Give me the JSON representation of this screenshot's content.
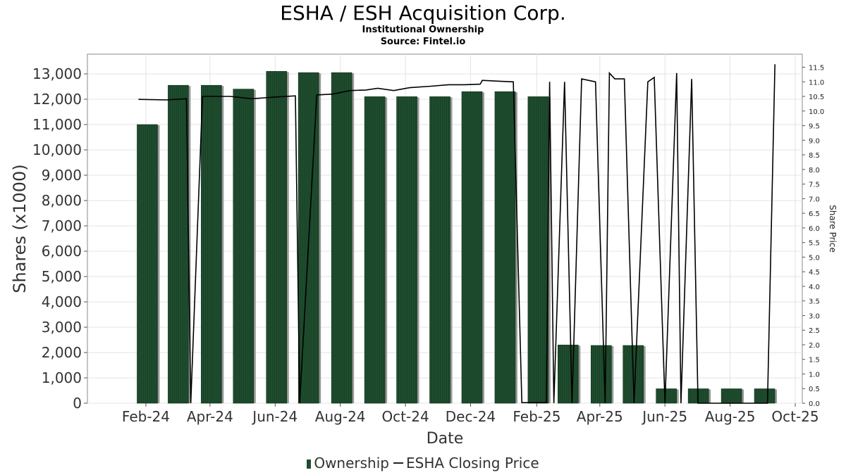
{
  "chart_data": {
    "type": "bar",
    "title": "ESHA / ESH Acquisition Corp.",
    "subtitle_lines": [
      "Institutional Ownership",
      "Source: Fintel.io"
    ],
    "xlabel": "Date",
    "ylabel": "Shares (x1000)",
    "y2label": "Share Price",
    "ylim": [
      0,
      13000
    ],
    "y_ticks": [
      0,
      1000,
      2000,
      3000,
      4000,
      5000,
      6000,
      7000,
      8000,
      9000,
      10000,
      11000,
      12000,
      13000
    ],
    "y_tick_labels": [
      "0",
      "1,000",
      "2,000",
      "3,000",
      "4,000",
      "5,000",
      "6,000",
      "7,000",
      "8,000",
      "9,000",
      "10,000",
      "11,000",
      "12,000",
      "13,000"
    ],
    "y2lim": [
      0,
      11.5
    ],
    "y2_ticks": [
      0.0,
      0.5,
      1.0,
      1.5,
      2.0,
      2.5,
      3.0,
      3.5,
      4.0,
      4.5,
      5.0,
      5.5,
      6.0,
      6.5,
      7.0,
      7.5,
      8.0,
      8.5,
      9.0,
      9.5,
      10.0,
      10.5,
      11.0,
      11.5
    ],
    "y2_tick_labels": [
      "0.0",
      "0.5",
      "1.0",
      "1.5",
      "2.0",
      "2.5",
      "3.0",
      "3.5",
      "4.0",
      "4.5",
      "5.0",
      "5.5",
      "6.0",
      "6.5",
      "7.0",
      "7.5",
      "8.0",
      "8.5",
      "9.0",
      "9.5",
      "10.0",
      "10.5",
      "11.0",
      "11.5"
    ],
    "x_range": [
      "2024-01-01",
      "2025-10-01"
    ],
    "x_ticks": [
      "2024-02-01",
      "2024-04-01",
      "2024-06-01",
      "2024-08-01",
      "2024-10-01",
      "2024-12-01",
      "2025-02-01",
      "2025-04-01",
      "2025-06-01",
      "2025-08-01",
      "2025-10-01"
    ],
    "x_tick_labels": [
      "Feb-24",
      "Apr-24",
      "Jun-24",
      "Aug-24",
      "Oct-24",
      "Dec-24",
      "Feb-25",
      "Apr-25",
      "Jun-25",
      "Aug-25",
      "Oct-25"
    ],
    "series": [
      {
        "name": "Ownership",
        "kind": "bar",
        "color": "#1f4d2e",
        "x": [
          "2024-02-01",
          "2024-03-01",
          "2024-04-01",
          "2024-05-01",
          "2024-06-01",
          "2024-07-01",
          "2024-08-01",
          "2024-09-01",
          "2024-10-01",
          "2024-11-01",
          "2024-12-01",
          "2025-01-01",
          "2025-02-01",
          "2025-03-01",
          "2025-04-01",
          "2025-05-01",
          "2025-06-01",
          "2025-07-01",
          "2025-08-01",
          "2025-09-01"
        ],
        "values": [
          11000,
          12550,
          12550,
          12400,
          13100,
          13050,
          13050,
          12100,
          12100,
          12100,
          12300,
          12300,
          12100,
          2300,
          2280,
          2280,
          570,
          570,
          570,
          570
        ]
      },
      {
        "name": "ESHA Closing Price",
        "kind": "line",
        "color": "#000000",
        "points": [
          [
            "2024-01-25",
            10.4
          ],
          [
            "2024-02-20",
            10.38
          ],
          [
            "2024-03-10",
            10.42
          ],
          [
            "2024-03-14",
            0.0
          ],
          [
            "2024-03-25",
            10.5
          ],
          [
            "2024-04-20",
            10.5
          ],
          [
            "2024-05-10",
            10.42
          ],
          [
            "2024-06-01",
            10.48
          ],
          [
            "2024-06-20",
            10.52
          ],
          [
            "2024-06-24",
            0.0
          ],
          [
            "2024-07-10",
            10.55
          ],
          [
            "2024-07-25",
            10.58
          ],
          [
            "2024-08-10",
            10.7
          ],
          [
            "2024-08-25",
            10.72
          ],
          [
            "2024-09-05",
            10.78
          ],
          [
            "2024-09-20",
            10.7
          ],
          [
            "2024-10-05",
            10.8
          ],
          [
            "2024-10-25",
            10.85
          ],
          [
            "2024-11-10",
            10.9
          ],
          [
            "2024-11-25",
            10.9
          ],
          [
            "2024-12-10",
            10.92
          ],
          [
            "2024-12-12",
            11.05
          ],
          [
            "2024-12-28",
            11.02
          ],
          [
            "2025-01-10",
            11.0
          ],
          [
            "2025-01-18",
            0.02
          ],
          [
            "2025-02-10",
            0.02
          ],
          [
            "2025-02-13",
            11.0
          ],
          [
            "2025-02-17",
            0.0
          ],
          [
            "2025-02-27",
            11.0
          ],
          [
            "2025-03-06",
            0.0
          ],
          [
            "2025-03-15",
            11.1
          ],
          [
            "2025-03-28",
            11.0
          ],
          [
            "2025-04-06",
            0.0
          ],
          [
            "2025-04-10",
            11.3
          ],
          [
            "2025-04-15",
            11.1
          ],
          [
            "2025-04-24",
            11.1
          ],
          [
            "2025-05-03",
            0.0
          ],
          [
            "2025-05-16",
            11.0
          ],
          [
            "2025-05-22",
            11.15
          ],
          [
            "2025-06-01",
            0.0
          ],
          [
            "2025-06-12",
            11.3
          ],
          [
            "2025-06-16",
            0.0
          ],
          [
            "2025-06-26",
            11.1
          ],
          [
            "2025-07-02",
            0.0
          ],
          [
            "2025-08-15",
            0.0
          ],
          [
            "2025-09-05",
            0.0
          ],
          [
            "2025-09-12",
            11.6
          ]
        ]
      }
    ],
    "legend_position": "bottom-center",
    "grid": true
  }
}
